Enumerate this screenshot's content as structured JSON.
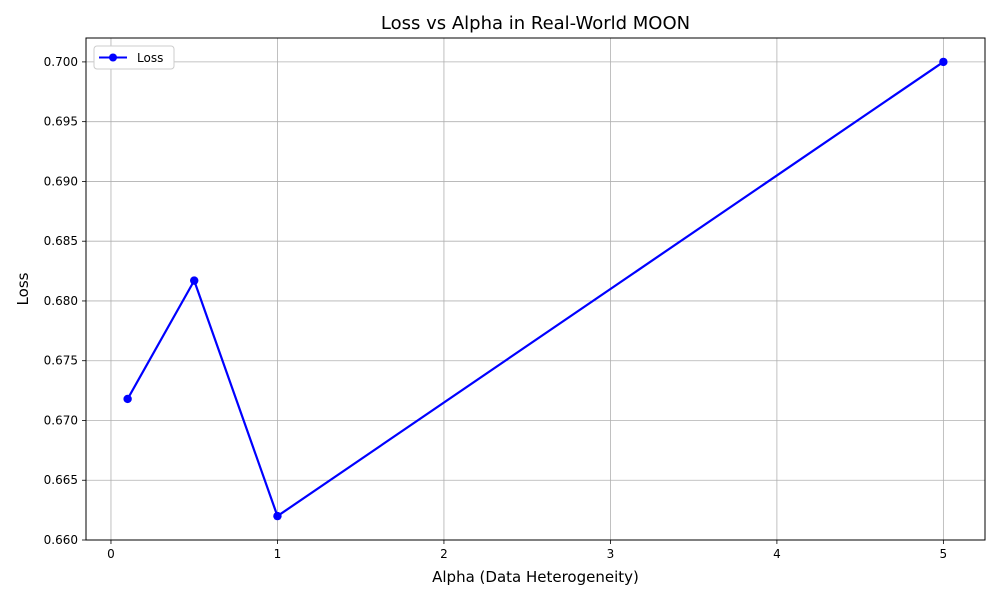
{
  "chart_data": {
    "type": "line",
    "title": "Loss vs Alpha in Real-World MOON",
    "xlabel": "Alpha (Data Heterogeneity)",
    "ylabel": "Loss",
    "xlim": [
      -0.15,
      5.25
    ],
    "ylim": [
      0.66,
      0.702
    ],
    "xticks": [
      0,
      1,
      2,
      3,
      4,
      5
    ],
    "xtick_labels": [
      "0",
      "1",
      "2",
      "3",
      "4",
      "5"
    ],
    "yticks": [
      0.66,
      0.665,
      0.67,
      0.675,
      0.68,
      0.685,
      0.69,
      0.695,
      0.7
    ],
    "ytick_labels": [
      "0.660",
      "0.665",
      "0.670",
      "0.675",
      "0.680",
      "0.685",
      "0.690",
      "0.695",
      "0.700"
    ],
    "grid": true,
    "legend_position": "top-left",
    "series": [
      {
        "name": "Loss",
        "color": "#0000ff",
        "marker": "circle",
        "x": [
          0.1,
          0.5,
          1.0,
          5.0
        ],
        "y": [
          0.6718,
          0.6817,
          0.662,
          0.7
        ]
      }
    ]
  }
}
